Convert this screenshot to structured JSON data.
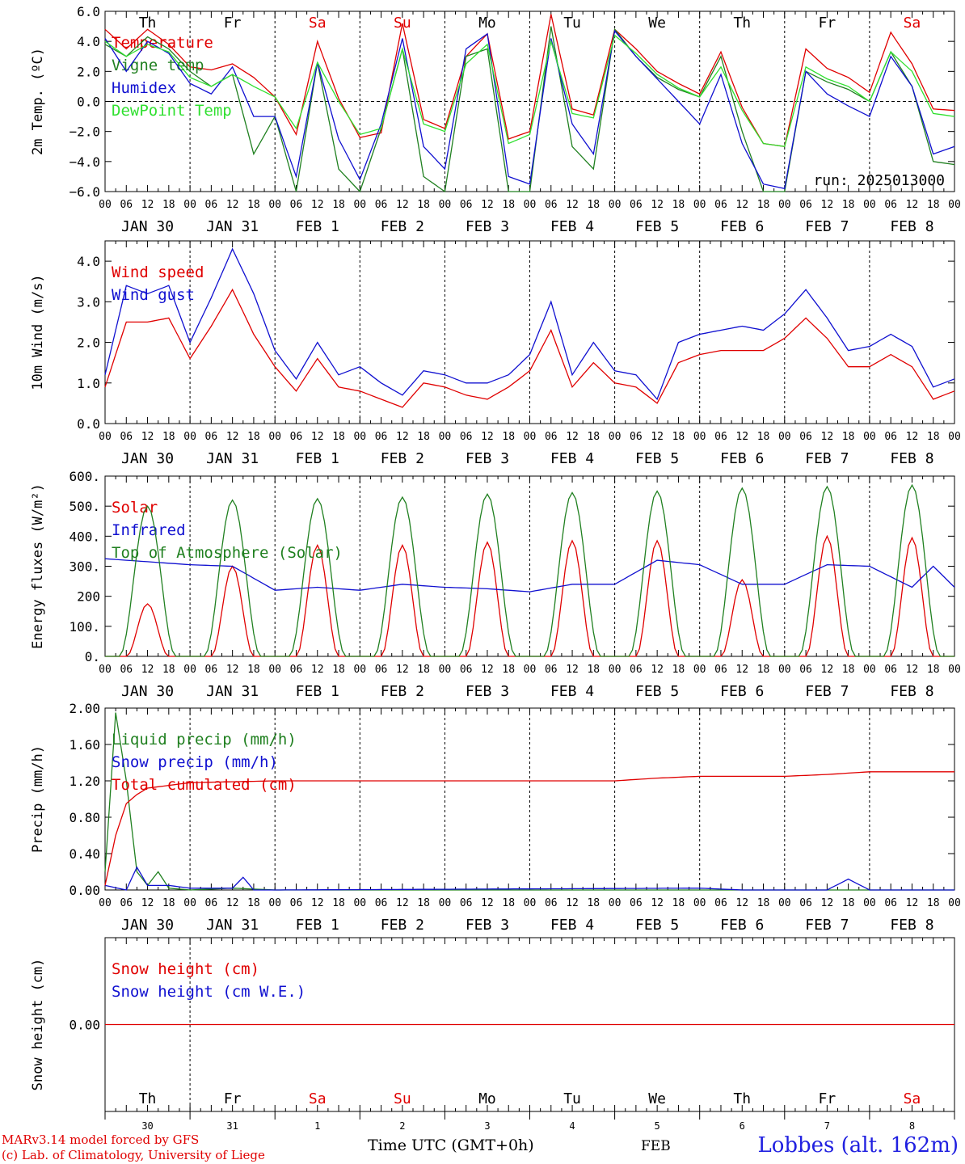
{
  "run_label": "run: 2025013000",
  "station": "Lobbes (alt. 162m)",
  "model_credit": "MARv3.14 model forced by GFS",
  "lab_credit": "(c) Lab. of Climatology, University of Liege",
  "time_axis_label": "Time UTC (GMT+0h)",
  "month_label": "FEB",
  "weekdays": [
    {
      "label": "Th",
      "weekend": false
    },
    {
      "label": "Fr",
      "weekend": false
    },
    {
      "label": "Sa",
      "weekend": true
    },
    {
      "label": "Su",
      "weekend": true
    },
    {
      "label": "Mo",
      "weekend": false
    },
    {
      "label": "Tu",
      "weekend": false
    },
    {
      "label": "We",
      "weekend": false
    },
    {
      "label": "Th",
      "weekend": false
    },
    {
      "label": "Fr",
      "weekend": false
    },
    {
      "label": "Sa",
      "weekend": true
    }
  ],
  "date_labels": [
    "JAN 30",
    "JAN 31",
    "FEB  1",
    "FEB  2",
    "FEB  3",
    "FEB  4",
    "FEB  5",
    "FEB  6",
    "FEB  7",
    "FEB  8"
  ],
  "day_numbers": [
    "30",
    "31",
    "1",
    "2",
    "3",
    "4",
    "5",
    "6",
    "7",
    "8"
  ],
  "hour_ticks": [
    "00",
    "06",
    "12",
    "18"
  ],
  "colors": {
    "red": "#e00000",
    "green": "#208020",
    "blue": "#1010d0",
    "lightgreen": "#30e030",
    "weekend": "#e00000"
  },
  "chart_data": [
    {
      "type": "line",
      "id": "temp",
      "ylabel": "2m Temp. (ºC)",
      "ylim": [
        -6,
        6
      ],
      "yticks": [
        "6.0",
        "4.0",
        "2.0",
        "0.0",
        "−2.0",
        "−4.0",
        "−6.0"
      ],
      "ytick_values": [
        6,
        4,
        2,
        0,
        -2,
        -4,
        -6
      ],
      "zero_line": true,
      "x_hours": [
        0,
        6,
        12,
        18,
        24,
        30,
        36,
        42,
        48,
        54,
        60,
        66,
        72,
        78,
        84,
        90,
        96,
        102,
        108,
        114,
        120,
        126,
        132,
        138,
        144,
        150,
        156,
        162,
        168,
        174,
        180,
        186,
        192,
        198,
        204,
        210,
        216,
        222,
        228,
        234,
        240
      ],
      "series": [
        {
          "name": "Temperature",
          "color": "red",
          "values": [
            4.8,
            3.5,
            4.8,
            3.8,
            2.3,
            2.1,
            2.5,
            1.6,
            0.3,
            -2.2,
            4.0,
            0.2,
            -2.4,
            -2.1,
            5.2,
            -1.2,
            -1.8,
            3.0,
            4.5,
            -2.5,
            -2.0,
            5.8,
            -0.5,
            -0.9,
            4.8,
            3.5,
            2.0,
            1.2,
            0.5,
            3.3,
            -0.4,
            -2.8,
            -3.0,
            3.5,
            2.2,
            1.6,
            0.6,
            4.6,
            2.5,
            -0.5,
            -0.6
          ]
        },
        {
          "name": "Vigne temp",
          "color": "green",
          "values": [
            3.8,
            3.0,
            4.3,
            3.5,
            2.0,
            1.0,
            1.8,
            -3.5,
            -1.0,
            -6.0,
            2.6,
            -4.5,
            -6.0,
            -1.8,
            3.5,
            -5.0,
            -6.0,
            3.0,
            3.5,
            -6.0,
            -6.0,
            5.0,
            -3.0,
            -4.5,
            4.8,
            3.0,
            1.6,
            0.8,
            0.3,
            3.0,
            -2.0,
            -6.0,
            -6.0,
            2.0,
            1.3,
            0.8,
            0.0,
            3.3,
            1.0,
            -4.0,
            -4.2
          ]
        },
        {
          "name": "Humidex",
          "color": "blue",
          "values": [
            4.2,
            2.0,
            4.0,
            3.2,
            1.2,
            0.5,
            2.3,
            -1.0,
            -1.0,
            -5.0,
            2.6,
            -2.5,
            -5.2,
            -1.5,
            4.2,
            -3.0,
            -4.5,
            3.5,
            4.5,
            -5.0,
            -5.5,
            4.2,
            -1.5,
            -3.5,
            4.7,
            3.0,
            1.5,
            0.0,
            -1.5,
            1.8,
            -2.8,
            -5.5,
            -5.8,
            2.0,
            0.5,
            -0.3,
            -1.0,
            3.0,
            1.0,
            -3.5,
            -3.0
          ]
        },
        {
          "name": "DewPoint Temp",
          "color": "lightgreen",
          "values": [
            4.0,
            3.0,
            3.8,
            3.3,
            1.6,
            1.0,
            1.8,
            1.0,
            0.3,
            -1.8,
            2.6,
            0.0,
            -2.2,
            -1.8,
            3.5,
            -1.5,
            -2.0,
            2.5,
            3.8,
            -2.8,
            -2.2,
            4.0,
            -0.8,
            -1.1,
            4.4,
            3.2,
            1.8,
            0.9,
            0.3,
            2.3,
            -0.6,
            -2.8,
            -3.0,
            2.3,
            1.5,
            1.0,
            0.0,
            3.3,
            2.0,
            -0.8,
            -1.0
          ]
        }
      ]
    },
    {
      "type": "line",
      "id": "wind",
      "ylabel": "10m Wind (m/s)",
      "ylim": [
        0,
        4.5
      ],
      "yticks": [
        "4.0",
        "3.0",
        "2.0",
        "1.0",
        "0.0"
      ],
      "ytick_values": [
        4,
        3,
        2,
        1,
        0
      ],
      "x_hours": [
        0,
        6,
        12,
        18,
        24,
        30,
        36,
        42,
        48,
        54,
        60,
        66,
        72,
        78,
        84,
        90,
        96,
        102,
        108,
        114,
        120,
        126,
        132,
        138,
        144,
        150,
        156,
        162,
        168,
        174,
        180,
        186,
        192,
        198,
        204,
        210,
        216,
        222,
        228,
        234,
        240
      ],
      "series": [
        {
          "name": "Wind speed",
          "color": "red",
          "values": [
            0.9,
            2.5,
            2.5,
            2.6,
            1.6,
            2.4,
            3.3,
            2.2,
            1.4,
            0.8,
            1.6,
            0.9,
            0.8,
            0.6,
            0.4,
            1.0,
            0.9,
            0.7,
            0.6,
            0.9,
            1.3,
            2.3,
            0.9,
            1.5,
            1.0,
            0.9,
            0.5,
            1.5,
            1.7,
            1.8,
            1.8,
            1.8,
            2.1,
            2.6,
            2.1,
            1.4,
            1.4,
            1.7,
            1.4,
            0.6,
            0.8
          ]
        },
        {
          "name": "Wind gust",
          "color": "blue",
          "values": [
            1.2,
            3.4,
            3.2,
            3.4,
            2.0,
            3.1,
            4.3,
            3.2,
            1.8,
            1.1,
            2.0,
            1.2,
            1.4,
            1.0,
            0.7,
            1.3,
            1.2,
            1.0,
            1.0,
            1.2,
            1.7,
            3.0,
            1.2,
            2.0,
            1.3,
            1.2,
            0.6,
            2.0,
            2.2,
            2.3,
            2.4,
            2.3,
            2.7,
            3.3,
            2.6,
            1.8,
            1.9,
            2.2,
            1.9,
            0.9,
            1.1
          ]
        }
      ]
    },
    {
      "type": "line",
      "id": "energy",
      "ylabel": "Energy fluxes (W/m²)",
      "ylim": [
        0,
        600
      ],
      "yticks": [
        "600.",
        "500.",
        "400.",
        "300.",
        "200",
        "100.",
        "0."
      ],
      "ytick_values": [
        600,
        500,
        400,
        300,
        200,
        100,
        0
      ],
      "series": [
        {
          "name": "Solar",
          "color": "red",
          "peak_hours": [
            12,
            36,
            60,
            84,
            108,
            132,
            156,
            180,
            204,
            228
          ],
          "peaks": [
            175,
            300,
            370,
            370,
            380,
            385,
            385,
            255,
            400,
            395
          ]
        },
        {
          "name": "Infrared",
          "color": "blue",
          "x_hours": [
            0,
            12,
            24,
            36,
            48,
            60,
            72,
            84,
            96,
            108,
            120,
            132,
            144,
            156,
            168,
            180,
            192,
            204,
            216,
            228,
            234,
            240
          ],
          "values": [
            325,
            315,
            305,
            300,
            220,
            230,
            220,
            240,
            230,
            225,
            215,
            240,
            240,
            320,
            305,
            240,
            240,
            305,
            300,
            230,
            300,
            230
          ]
        },
        {
          "name": "Top of Atmosphere (Solar)",
          "color": "green",
          "peak_hours": [
            12,
            36,
            60,
            84,
            108,
            132,
            156,
            180,
            204,
            228
          ],
          "peaks": [
            500,
            520,
            525,
            530,
            540,
            545,
            550,
            560,
            565,
            570
          ]
        }
      ]
    },
    {
      "type": "line",
      "id": "precip",
      "ylabel": "Precip (mm/h)",
      "ylim": [
        0,
        2
      ],
      "yticks": [
        "2.00",
        "1.60",
        "1.20",
        "0.80",
        "0.40",
        "0.00"
      ],
      "ytick_values": [
        2,
        1.6,
        1.2,
        0.8,
        0.4,
        0
      ],
      "series": [
        {
          "name": "Liquid precip (mm/h)",
          "color": "green",
          "x_hours": [
            0,
            3,
            6,
            9,
            12,
            15,
            18,
            24,
            36,
            48,
            240
          ],
          "values": [
            0.2,
            1.95,
            1.2,
            0.2,
            0.05,
            0.2,
            0.02,
            0.0,
            0.02,
            0.0,
            0.0
          ]
        },
        {
          "name": "Snow precip (mm/h)",
          "color": "blue",
          "x_hours": [
            0,
            6,
            9,
            12,
            18,
            24,
            36,
            39,
            42,
            48,
            168,
            180,
            204,
            210,
            216,
            240
          ],
          "values": [
            0.05,
            0.0,
            0.25,
            0.05,
            0.05,
            0.02,
            0.02,
            0.14,
            0.0,
            0.0,
            0.02,
            0.0,
            0.0,
            0.12,
            0.0,
            0.0
          ]
        },
        {
          "name": "Total cumulated (cm)",
          "color": "red",
          "x_hours": [
            0,
            3,
            6,
            9,
            12,
            24,
            48,
            96,
            144,
            156,
            168,
            192,
            204,
            216,
            228,
            240
          ],
          "values": [
            0.05,
            0.6,
            0.95,
            1.05,
            1.12,
            1.18,
            1.2,
            1.2,
            1.2,
            1.23,
            1.25,
            1.25,
            1.27,
            1.3,
            1.3,
            1.3
          ]
        }
      ]
    },
    {
      "type": "line",
      "id": "snow",
      "ylabel": "Snow height (cm)",
      "ylim": [
        -1,
        1
      ],
      "yticks": [
        "0.00"
      ],
      "ytick_values": [
        0
      ],
      "series": [
        {
          "name": "Snow height (cm)",
          "color": "red",
          "x_hours": [
            0,
            240
          ],
          "values": [
            0,
            0
          ]
        },
        {
          "name": "Snow height (cm W.E.)",
          "color": "blue",
          "x_hours": [],
          "values": []
        }
      ]
    }
  ]
}
